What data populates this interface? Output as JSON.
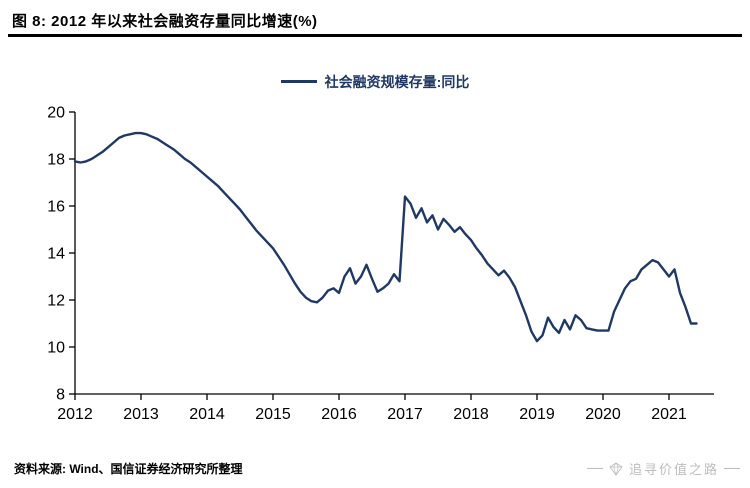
{
  "header": {
    "title": "图 8: 2012 年以来社会融资存量同比增速(%)"
  },
  "legend": {
    "label": "社会融资规模存量:同比"
  },
  "footer": {
    "source": "资料来源: Wind、国信证券经济研究所整理",
    "watermark": "追寻价值之路"
  },
  "colors": {
    "line": "#1f3864",
    "legend_text": "#1f3864",
    "axis": "#000000",
    "watermark": "#bcbcbc"
  },
  "chart_data": {
    "type": "line",
    "title": "2012 年以来社会融资存量同比增速(%)",
    "xlabel": "",
    "ylabel": "",
    "ylim": [
      8,
      20
    ],
    "y_ticks": [
      8,
      10,
      12,
      14,
      16,
      18,
      20
    ],
    "x_ticks": [
      "2012",
      "2013",
      "2014",
      "2015",
      "2016",
      "2017",
      "2018",
      "2019",
      "2020",
      "2021"
    ],
    "x_start": "2012-01",
    "x_interval": "monthly",
    "grid": false,
    "legend_position": "top-center",
    "series": [
      {
        "name": "社会融资规模存量:同比",
        "values": [
          17.9,
          17.85,
          17.9,
          18.0,
          18.15,
          18.3,
          18.5,
          18.7,
          18.9,
          19.0,
          19.05,
          19.1,
          19.1,
          19.05,
          18.95,
          18.85,
          18.7,
          18.55,
          18.4,
          18.2,
          18.0,
          17.85,
          17.65,
          17.45,
          17.25,
          17.05,
          16.85,
          16.6,
          16.35,
          16.1,
          15.85,
          15.55,
          15.25,
          14.95,
          14.7,
          14.45,
          14.2,
          13.85,
          13.5,
          13.1,
          12.7,
          12.35,
          12.1,
          11.95,
          11.9,
          12.1,
          12.4,
          12.5,
          12.3,
          13.0,
          13.35,
          12.7,
          13.0,
          13.5,
          12.9,
          12.35,
          12.5,
          12.7,
          13.1,
          12.8,
          16.4,
          16.1,
          15.5,
          15.9,
          15.3,
          15.6,
          15.0,
          15.45,
          15.2,
          14.9,
          15.1,
          14.8,
          14.55,
          14.2,
          13.9,
          13.55,
          13.3,
          13.05,
          13.25,
          12.95,
          12.55,
          11.95,
          11.35,
          10.65,
          10.25,
          10.5,
          11.25,
          10.85,
          10.6,
          11.15,
          10.75,
          11.35,
          11.15,
          10.8,
          10.75,
          10.7,
          10.7,
          10.7,
          11.5,
          12.0,
          12.5,
          12.8,
          12.9,
          13.3,
          13.5,
          13.7,
          13.6,
          13.3,
          13.0,
          13.3,
          12.3,
          11.7,
          11.0,
          11.0
        ]
      }
    ]
  }
}
